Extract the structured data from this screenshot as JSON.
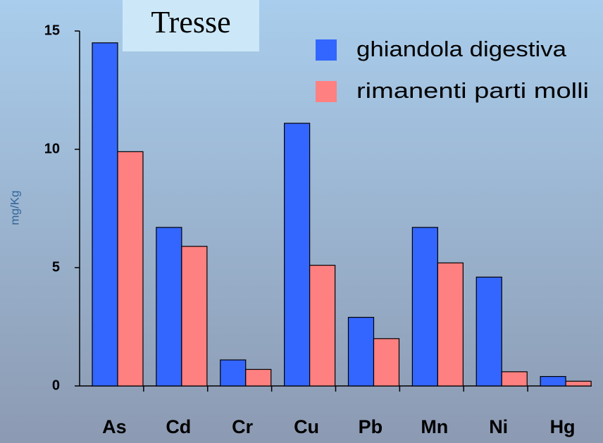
{
  "chart_data": {
    "type": "bar",
    "title": "Tresse",
    "y_label": "mg/Kg",
    "categories": [
      "As",
      "Cd",
      "Cr",
      "Cu",
      "Pb",
      "Mn",
      "Ni",
      "Hg"
    ],
    "series": [
      {
        "name": "ghiandola digestiva",
        "color": "#3366ff",
        "values": [
          14.5,
          6.7,
          1.1,
          11.1,
          2.9,
          6.7,
          4.6,
          0.4
        ]
      },
      {
        "name": "rimanenti parti molli",
        "color": "#ff8080",
        "values": [
          9.9,
          5.9,
          0.7,
          5.1,
          2.0,
          5.2,
          0.6,
          0.2
        ]
      }
    ],
    "ylim": [
      0,
      15
    ],
    "yticks": [
      0,
      5,
      10,
      15
    ],
    "grid": false
  }
}
